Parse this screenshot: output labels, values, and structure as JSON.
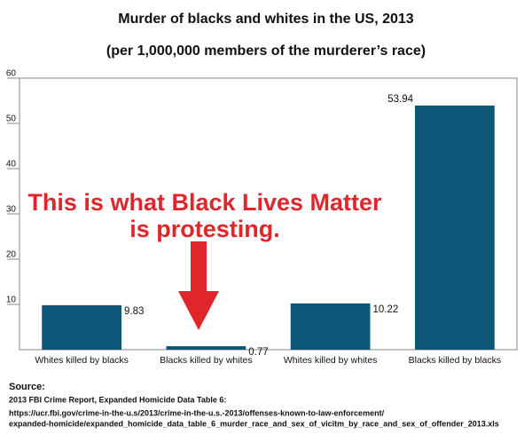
{
  "chart_data": {
    "type": "bar",
    "title": "Murder of blacks and whites in the US, 2013",
    "subtitle": "(per 1,000,000 members of the murderer’s race)",
    "categories": [
      "Whites killed by blacks",
      "Blacks killed by whites",
      "Whites killed by whites",
      "Blacks killed by blacks"
    ],
    "values": [
      9.83,
      0.77,
      10.22,
      53.94
    ],
    "color": "#0e5677",
    "ylim": [
      0,
      60
    ],
    "yticks": [
      10,
      20,
      30,
      40,
      50,
      60
    ],
    "grid": false,
    "annotation": [
      "This is what Black Lives Matter",
      "is protesting."
    ],
    "source": {
      "label": "Source:",
      "lines": [
        "2013 FBI Crime Report, Expanded Homicide Data Table 6:",
        "https://ucr.fbi.gov/crime-in-the-u.s/2013/crime-in-the-u.s.-2013/offenses-known-to-law-enforcement/",
        "expanded-homicide/expanded_homicide_data_table_6_murder_race_and_sex_of_vicitm_by_race_and_sex_of_offender_2013.xls"
      ]
    }
  }
}
